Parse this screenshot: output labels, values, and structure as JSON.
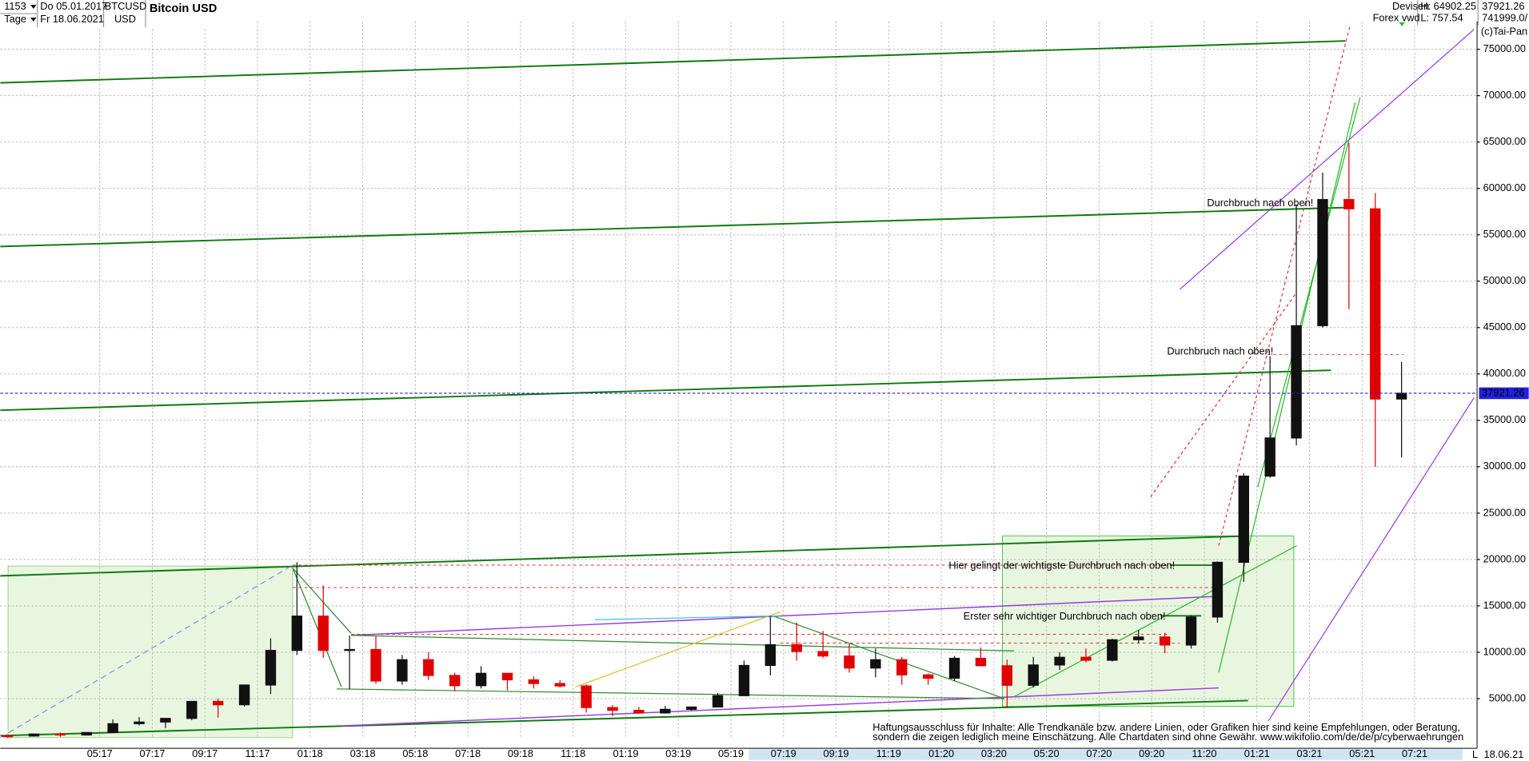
{
  "header": {
    "count": "1153",
    "period": "Tage",
    "start_date": "Do 05.01.2017",
    "end_date": "Fr 18.06.2021",
    "symbol": "BTCUSD",
    "currency": "USD",
    "market": "Devisen",
    "source": "Forex vwd",
    "high": "H: 64902.25",
    "low": "L: 757.54",
    "volume": "741999.0/",
    "copyright": "(c)Tai-Pan",
    "axis_end_date": "18.06.21",
    "axis_marker": "L"
  },
  "chart_data": {
    "type": "candlestick",
    "title": "Bitcoin USD",
    "categories": [
      null,
      null,
      null,
      null,
      "05:17",
      null,
      "07:17",
      null,
      "09:17",
      null,
      "11:17",
      null,
      "01:18",
      null,
      "03:18",
      null,
      "05:18",
      null,
      "07:18",
      null,
      "09:18",
      null,
      "11:18",
      null,
      "01:19",
      null,
      "03:19",
      null,
      "05:19",
      null,
      "07:19",
      null,
      "09:19",
      null,
      "11:19",
      null,
      "01:20",
      null,
      "03:20",
      null,
      "05:20",
      null,
      "07:20",
      null,
      "09:20",
      null,
      "11:20",
      null,
      "01:21",
      null,
      "03:21",
      null,
      "05:21",
      null,
      "07:21"
    ],
    "open": [
      1000,
      970,
      1190,
      1080,
      1350,
      2300,
      2480,
      2870,
      4700,
      4340,
      6470,
      10200,
      13900,
      10200,
      10300,
      6900,
      9200,
      7500,
      6400,
      7730,
      7030,
      6630,
      6370,
      4040,
      3740,
      3460,
      3850,
      4100,
      5320,
      8580,
      10820,
      10080,
      9600,
      8300,
      9200,
      7560,
      7200,
      9350,
      8550,
      6440,
      8630,
      9460,
      9140,
      11350,
      11650,
      10780,
      13800,
      19700,
      28990,
      33100,
      45200,
      58800,
      57800,
      37300,
      null
    ],
    "high": [
      1150,
      1200,
      1350,
      1350,
      2760,
      3000,
      2900,
      4750,
      5000,
      6470,
      11500,
      19700,
      17200,
      11800,
      11700,
      9700,
      10000,
      7800,
      8500,
      7760,
      7400,
      7000,
      6550,
      4300,
      4100,
      4200,
      4130,
      5600,
      9100,
      13900,
      13200,
      12300,
      10900,
      10400,
      9500,
      7750,
      9600,
      10500,
      9200,
      9500,
      10000,
      10400,
      11450,
      12400,
      12100,
      14000,
      19800,
      29300,
      41900,
      58300,
      61700,
      64902.25,
      59500,
      41300,
      null
    ],
    "low": [
      757.54,
      920,
      890,
      1060,
      1340,
      2100,
      1830,
      2680,
      2950,
      4150,
      5500,
      9700,
      9400,
      6000,
      6600,
      6500,
      7000,
      5800,
      6100,
      5880,
      6100,
      6200,
      3500,
      3120,
      3400,
      3380,
      3730,
      4090,
      5300,
      7500,
      9100,
      9400,
      7800,
      7300,
      6500,
      6500,
      6900,
      8500,
      4000,
      6200,
      8100,
      8900,
      9000,
      11000,
      9900,
      10400,
      13200,
      17600,
      28800,
      32300,
      45000,
      47000,
      30000,
      31000,
      null
    ],
    "close": [
      970,
      1190,
      1080,
      1350,
      2300,
      2480,
      2870,
      4700,
      4340,
      6470,
      10200,
      13900,
      10200,
      10300,
      6900,
      9200,
      7500,
      6400,
      7730,
      7030,
      6630,
      6370,
      4040,
      3740,
      3460,
      3850,
      4100,
      5320,
      8580,
      10820,
      10080,
      9600,
      8300,
      9200,
      7560,
      7200,
      9350,
      8550,
      6440,
      8630,
      9460,
      9140,
      11350,
      11650,
      10780,
      13800,
      19700,
      28990,
      33100,
      45200,
      58800,
      57800,
      37300,
      37921.26,
      null
    ],
    "up_color": "#111111",
    "down_color": "#e00000",
    "last_line_color": "#2020e0",
    "ylim": [
      800,
      78000
    ],
    "yticks": [
      {
        "value": 5000,
        "label": "5000.00"
      },
      {
        "value": 10000,
        "label": "10000.00"
      },
      {
        "value": 15000,
        "label": "15000.00"
      },
      {
        "value": 20000,
        "label": "20000.00"
      },
      {
        "value": 25000,
        "label": "25000.00"
      },
      {
        "value": 30000,
        "label": "30000.00"
      },
      {
        "value": 35000,
        "label": "35000.00"
      },
      {
        "value": 40000,
        "label": "40000.00"
      },
      {
        "value": 45000,
        "label": "45000.00"
      },
      {
        "value": 50000,
        "label": "50000.00"
      },
      {
        "value": 55000,
        "label": "55000.00"
      },
      {
        "value": 60000,
        "label": "60000.00"
      },
      {
        "value": 65000,
        "label": "65000.00"
      },
      {
        "value": 70000,
        "label": "70000.00"
      },
      {
        "value": 75000,
        "label": "75000.00"
      }
    ],
    "grid": true,
    "annotations": [
      {
        "text": "Durchbruch nach oben!",
        "color": "#2a8a9a"
      },
      {
        "text": "Durchbruch nach oben!",
        "color": "#2a8a9a"
      },
      {
        "text": "Hier gelingt der wichtigste Durchbruch nach oben!",
        "color": "#2a8a9a"
      },
      {
        "text": "Erster sehr wichtiger Durchbruch nach oben!",
        "color": "#2a8a9a"
      }
    ],
    "disclaimer": [
      "Haftungsausschluss für Inhalte: Alle Trendkanäle bzw. andere Linien, oder Grafiken hier sind keine Empfehlungen, oder Beratung,",
      "sondern die zeigen lediglich meine  Einschätzung. Alle Chartdaten sind ohne Gewähr.  www.wikifolio.com/de/de/p/cyberwaehrungen"
    ]
  }
}
